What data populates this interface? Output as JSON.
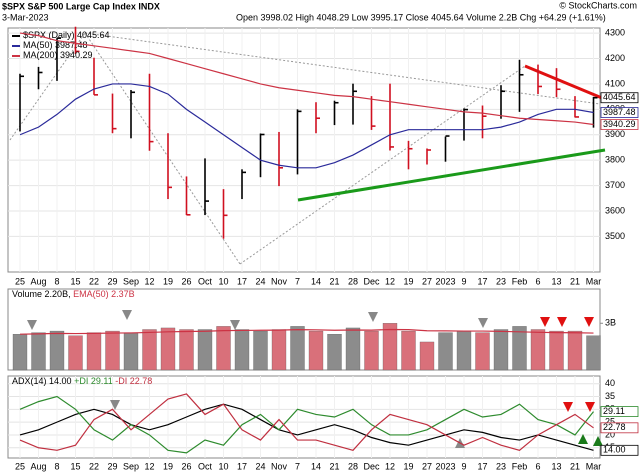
{
  "chart_data": [
    {
      "type": "ohlc",
      "title": "$SPX S&P 500 Large Cap Index INDX",
      "subtitle": "3-Mar-2023",
      "quote": "Open 3998.02 High 4048.29 Low 3995.17 Close 4045.64 Volume 2.2B Chg +64.29 (+1.61%)",
      "source": "© StockCharts.com",
      "categories": [
        "25",
        "Aug",
        "8",
        "15",
        "22",
        "29",
        "Sep",
        "12",
        "19",
        "26",
        "Oct",
        "10",
        "17",
        "24",
        "Nov",
        "7",
        "14",
        "21",
        "28",
        "Dec",
        "12",
        "19",
        "27",
        "2023",
        "9",
        "17",
        "23",
        "Feb",
        "6",
        "13",
        "21",
        "Mar"
      ],
      "ylim": [
        3360,
        4320
      ],
      "yticks": [
        3500,
        3600,
        3700,
        3800,
        3900,
        4000,
        4100,
        4200,
        4300
      ],
      "grid": true,
      "series": [
        {
          "name": "$SPX (Daily)",
          "color": "#000000",
          "up_color": "#000000",
          "down_color": "#d01020",
          "high": [
            4140,
            4167,
            4280,
            4325,
            4203,
            4062,
            4076,
            4140,
            3906,
            3736,
            3807,
            3686,
            3764,
            3905,
            3911,
            4000,
            4028,
            4034,
            4101,
            4052,
            4101,
            3876,
            3846,
            3893,
            4003,
            4015,
            4095,
            4195,
            4176,
            4162,
            4052,
            4049
          ],
          "low": [
            3913,
            4079,
            4112,
            4218,
            4057,
            3906,
            3886,
            3837,
            3647,
            3584,
            3584,
            3491,
            3647,
            3733,
            3698,
            3744,
            3906,
            3938,
            3940,
            3919,
            3838,
            3764,
            3783,
            3794,
            3877,
            3886,
            3963,
            3990,
            4060,
            4048,
            3968,
            3928
          ],
          "values": [
            4130,
            4145,
            4280,
            4228,
            4057,
            3924,
            4067,
            3873,
            3693,
            3585,
            3639,
            3583,
            3752,
            3901,
            3770,
            3992,
            3965,
            4026,
            4071,
            3934,
            3852,
            3845,
            3840,
            3895,
            3999,
            3973,
            4071,
            4136,
            4090,
            4079,
            3970,
            4045.64
          ]
        },
        {
          "name": "MA(50)",
          "color": "#2a2a9a",
          "values": [
            3900,
            3930,
            3980,
            4040,
            4080,
            4100,
            4100,
            4090,
            4060,
            4000,
            3950,
            3900,
            3850,
            3800,
            3780,
            3770,
            3770,
            3790,
            3820,
            3860,
            3900,
            3920,
            3920,
            3920,
            3920,
            3920,
            3930,
            3950,
            3980,
            4000,
            4000,
            3987.48
          ]
        },
        {
          "name": "MA(200)",
          "color": "#cc3344",
          "values": [
            4300,
            4290,
            4270,
            4260,
            4250,
            4240,
            4230,
            4220,
            4200,
            4180,
            4160,
            4140,
            4120,
            4100,
            4085,
            4075,
            4065,
            4055,
            4050,
            4040,
            4030,
            4020,
            4010,
            4000,
            3990,
            3985,
            3975,
            3965,
            3960,
            3955,
            3950,
            3940.29
          ]
        }
      ]
    },
    {
      "type": "bar",
      "ylim": [
        0,
        5.2
      ],
      "yticks": [
        {
          "value": 3,
          "label": "3B"
        }
      ],
      "series": [
        {
          "name": "Volume",
          "last_label": "2.20B,",
          "up_color": "#8c8c8c",
          "down_color": "#d9707a",
          "values": [
            2.3,
            2.4,
            2.5,
            2.2,
            2.4,
            2.5,
            2.4,
            2.6,
            2.7,
            2.6,
            2.6,
            2.8,
            2.6,
            2.5,
            2.6,
            2.8,
            2.5,
            2.3,
            2.7,
            2.5,
            3.0,
            2.5,
            1.8,
            2.4,
            2.5,
            2.4,
            2.6,
            2.8,
            2.6,
            2.5,
            2.5,
            2.2
          ]
        },
        {
          "name": "EMA(50)",
          "last_label": "2.37B",
          "color": "#cc3344",
          "values": [
            2.3,
            2.32,
            2.35,
            2.34,
            2.35,
            2.37,
            2.38,
            2.41,
            2.45,
            2.47,
            2.49,
            2.53,
            2.54,
            2.55,
            2.56,
            2.59,
            2.58,
            2.55,
            2.57,
            2.56,
            2.6,
            2.59,
            2.52,
            2.51,
            2.5,
            2.5,
            2.48,
            2.45,
            2.42,
            2.4,
            2.39,
            2.37
          ]
        }
      ]
    },
    {
      "type": "line",
      "categories": [
        "25",
        "Aug",
        "8",
        "15",
        "22",
        "29",
        "Sep",
        "12",
        "19",
        "26",
        "Oct",
        "10",
        "17",
        "24",
        "Nov",
        "7",
        "14",
        "21",
        "28",
        "Dec",
        "12",
        "19",
        "27",
        "2023",
        "9",
        "17",
        "23",
        "Feb",
        "6",
        "13",
        "21",
        "Mar"
      ],
      "ylim": [
        11,
        43
      ],
      "yticks": [
        15,
        20,
        25,
        30,
        35,
        40
      ],
      "grid": true,
      "series": [
        {
          "name": "ADX(14)",
          "last_label": "14.00",
          "color": "#000000",
          "values": [
            20,
            22,
            25,
            28,
            30,
            28,
            24,
            22,
            24,
            27,
            30,
            32,
            30,
            26,
            22,
            20,
            22,
            24,
            22,
            19,
            17,
            16,
            18,
            20,
            22,
            21,
            19,
            18,
            20,
            18,
            16,
            14
          ]
        },
        {
          "name": "+DI",
          "last_label": "29.11",
          "color": "#2e8b2e",
          "values": [
            30,
            33,
            35,
            30,
            22,
            18,
            24,
            20,
            14,
            13,
            18,
            16,
            24,
            28,
            22,
            30,
            28,
            27,
            30,
            24,
            20,
            20,
            22,
            26,
            30,
            27,
            28,
            32,
            26,
            24,
            20,
            29.11
          ]
        },
        {
          "name": "-DI",
          "last_label": "22.78",
          "color": "#c03040",
          "values": [
            18,
            15,
            14,
            16,
            26,
            30,
            22,
            28,
            34,
            36,
            28,
            32,
            22,
            18,
            26,
            18,
            18,
            16,
            14,
            22,
            28,
            26,
            24,
            20,
            16,
            19,
            16,
            14,
            20,
            24,
            28,
            22.78
          ]
        }
      ]
    }
  ]
}
